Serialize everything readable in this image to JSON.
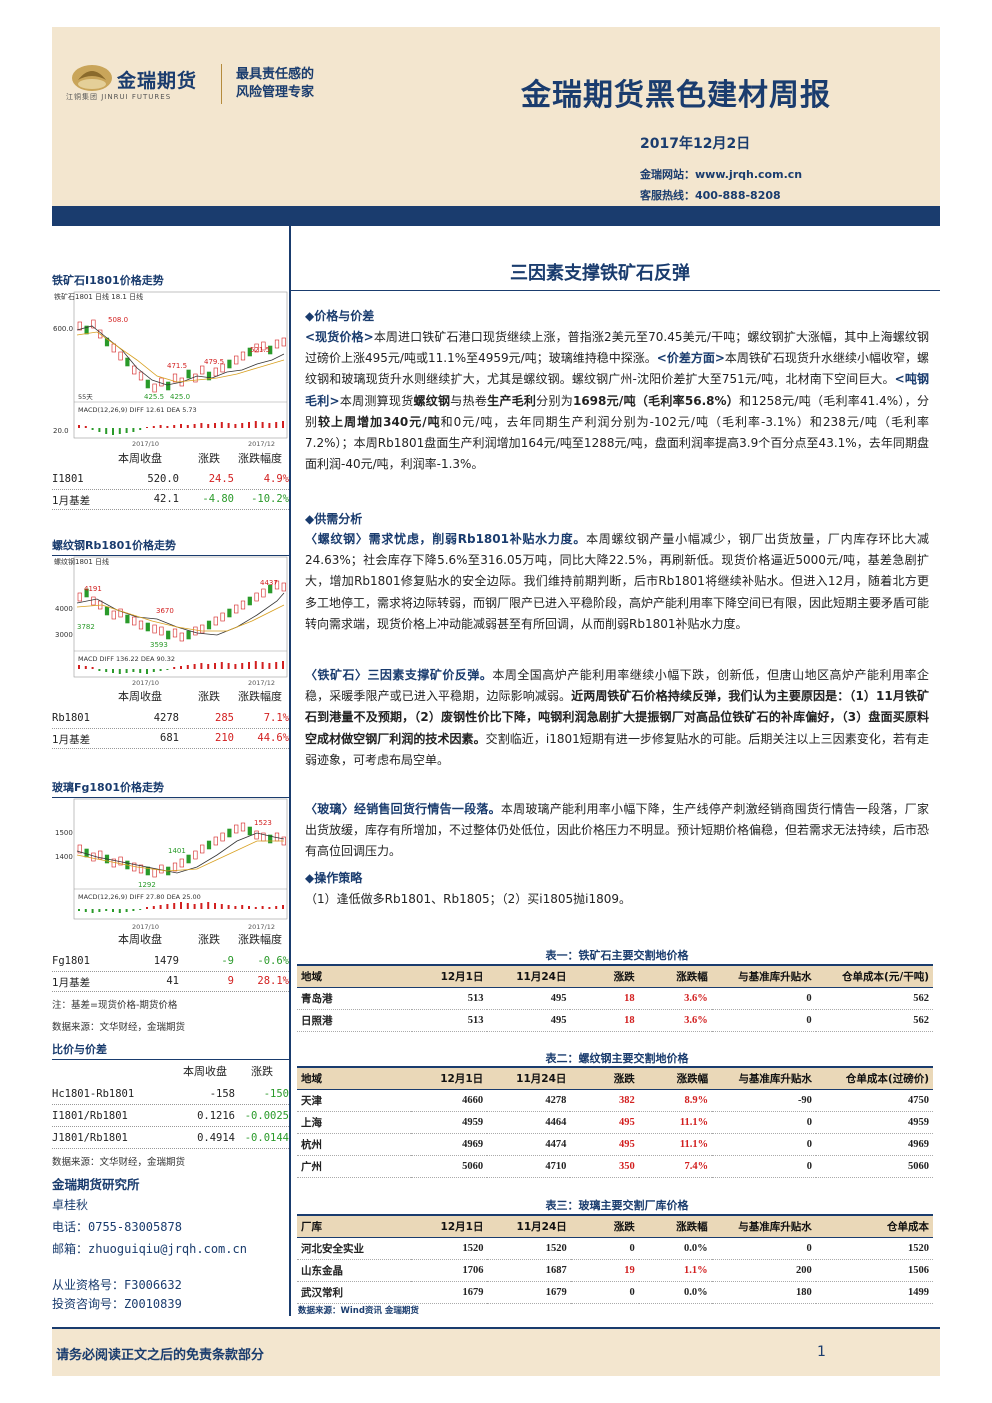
{
  "header": {
    "logo_cn": "金瑞期货",
    "logo_en": "江铜集团 JINRUI FUTURES",
    "slogan_line1": "最具责任感的",
    "slogan_line2": "风险管理专家",
    "title": "金瑞期货黑色建材周报",
    "date": "2017年12月2日",
    "site": "金瑞网站：www.jrqh.com.cn",
    "hotline": "客服热线：400-888-8208"
  },
  "main_title": "三因素支撑铁矿石反弹",
  "sidebar": {
    "iron": {
      "heading": "铁矿石I1801价格走势",
      "chart_label": "铁矿石1801 日线 18.1 日线",
      "y_top": "600.0",
      "y_bot": "20.0",
      "labels": [
        "508.0",
        "471.5",
        "479.5",
        "521.5",
        "425.5",
        "425.0"
      ],
      "macd": "MACD(12,26,9)  DIFF  12.61  DEA  5.73",
      "dates": [
        "2017/10",
        "2017/12"
      ],
      "misc": "55天",
      "cols": [
        "本周收盘",
        "涨跌",
        "涨跌幅度"
      ],
      "rows": [
        {
          "name": "I1801",
          "close": "520.0",
          "chg": "24.5",
          "pct": "4.9%"
        },
        {
          "name": "1月基差",
          "close": "42.1",
          "chg": "-4.80",
          "pct": "-10.2%"
        }
      ]
    },
    "rebar": {
      "heading": "螺纹钢Rb1801价格走势",
      "chart_label": "螺纹钢1801 日线",
      "y_top": "4000",
      "y_bot": "3000",
      "labels": [
        "4191",
        "3670",
        "3782",
        "3593",
        "4437"
      ],
      "macd": "MACD  DIFF  136.22  DEA  90.32",
      "dates": [
        "2017/10",
        "2017/12"
      ],
      "cols": [
        "本周收盘",
        "涨跌",
        "涨跌幅度"
      ],
      "rows": [
        {
          "name": "Rb1801",
          "close": "4278",
          "chg": "285",
          "pct": "7.1%"
        },
        {
          "name": "1月基差",
          "close": "681",
          "chg": "210",
          "pct": "44.6%"
        }
      ]
    },
    "glass": {
      "heading": "玻璃Fg1801价格走势",
      "chart_label": "",
      "y_top": "1500",
      "y_bot": "1400",
      "labels": [
        "1523",
        "1401",
        "1292"
      ],
      "macd": "MACD(12,26,9)  DIFF  27.80  DEA  25.00",
      "dates": [
        "2017/10",
        "2017/12"
      ],
      "cols": [
        "本周收盘",
        "涨跌",
        "涨跌幅度"
      ],
      "rows": [
        {
          "name": "Fg1801",
          "close": "1479",
          "chg": "-9",
          "pct": "-0.6%"
        },
        {
          "name": "1月基差",
          "close": "41",
          "chg": "9",
          "pct": "28.1%"
        }
      ]
    },
    "note1": "注：基差=现货价格-期货价格",
    "note2": "数据来源：文华财经，金瑞期货",
    "ratio": {
      "heading": "比价与价差",
      "cols": [
        "本周收盘",
        "涨跌"
      ],
      "rows": [
        {
          "name": "Hc1801-Rb1801",
          "close": "-158",
          "chg": "-150"
        },
        {
          "name": "I1801/Rb1801",
          "close": "0.1216",
          "chg": "-0.0025"
        },
        {
          "name": "J1801/Rb1801",
          "close": "0.4914",
          "chg": "-0.0144"
        }
      ],
      "source": "数据来源：文华财经，金瑞期货"
    },
    "contact": {
      "org": "金瑞期货研究所",
      "name": "卓桂秋",
      "phone": "电话：0755-83005878",
      "email": "邮箱：zhuoguiqiu@jrqh.com.cn",
      "cert1": "从业资格号：F3006632",
      "cert2": "投资咨询号：Z0010839"
    }
  },
  "body": {
    "s1": "◆价格与价差",
    "p1": [
      {
        "t": "<现货价格>",
        "k": true
      },
      {
        "t": "本周进口铁矿石港口现货继续上涨，普指涨2美元至70.45美元/干吨；螺纹钢扩大涨幅，其中上海螺纹钢过磅价上涨495元/吨或11.1%至4959元/吨；玻璃维持稳中探涨。"
      },
      {
        "t": "<价差方面>",
        "k": true
      },
      {
        "t": "本周铁矿石现货升水继续小幅收窄，螺纹钢和玻璃现货升水则继续扩大，尤其是螺纹钢。螺纹钢广州-沈阳价差扩大至751元/吨，北材南下空间巨大。"
      },
      {
        "t": "<吨钢毛利>",
        "k": true
      },
      {
        "t": "本周测算现货"
      },
      {
        "t": "螺纹钢",
        "b": true
      },
      {
        "t": "与热卷"
      },
      {
        "t": "生产毛利",
        "b": true
      },
      {
        "t": "分别为"
      },
      {
        "t": "1698元/吨（毛利率56.8%）",
        "b": true
      },
      {
        "t": "和1258元/吨（毛利率41.4%），分别"
      },
      {
        "t": "较上周增加340元/吨",
        "b": true
      },
      {
        "t": "和0元/吨，去年同期生产利润分别为-102元/吨（毛利率-3.1%）和238元/吨（毛利率7.2%）；本周Rb1801盘面生产利润增加164元/吨至1288元/吨，盘面利润率提高3.9个百分点至43.1%，去年同期盘面利润-40元/吨，利润率-1.3%。"
      }
    ],
    "s2": "◆供需分析",
    "p2": [
      {
        "t": "〈螺纹钢〉需求忧虑，削弱Rb1801补贴水力度。",
        "k": true
      },
      {
        "t": "本周螺纹钢产量小幅减少，钢厂出货放量，厂内库存环比大减24.63%；社会库存下降5.6%至316.05万吨，同比大降22.5%，再刷新低。现货价格逼近5000元/吨，基差急剧扩大，增加Rb1801修复贴水的安全边际。我们维持前期判断，后市Rb1801将继续补贴水。但进入12月，随着北方更多工地停工，需求将边际转弱，而钢厂限产已进入平稳阶段，高炉产能利用率下降空间已有限，因此短期主要矛盾可能转向需求端，现货价格上冲动能减弱甚至有所回调，从而削弱Rb1801补贴水力度。"
      }
    ],
    "p3": [
      {
        "t": "〈铁矿石〉三因素支撑矿价反弹。",
        "k": true
      },
      {
        "t": "本周全国高炉产能利用率继续小幅下跌，创新低，但唐山地区高炉产能利用率企稳，采暖季限产或已进入平稳期，边际影响减弱。"
      },
      {
        "t": "近两周铁矿石价格持续反弹，我们认为主要原因是：（1）11月铁矿石到港量不及预期，（2）废钢性价比下降，吨钢利润急剧扩大提振钢厂对高品位铁矿石的补库偏好，（3）盘面买原料空成材做空钢厂利润的技术因素。",
        "b": true
      },
      {
        "t": "交割临近，i1801短期有进一步修复贴水的可能。后期关注以上三因素变化，若有走弱迹象，可考虑布局空单。"
      }
    ],
    "p4": [
      {
        "t": "〈玻璃〉经销售回货行情告一段落。",
        "k": true
      },
      {
        "t": "本周玻璃产能利用率小幅下降，生产线停产刺激经销商囤货行情告一段落，厂家出货放缓，库存有所增加，不过整体仍处低位，因此价格压力不明显。预计短期价格偏稳，但若需求无法持续，后市恐有高位回调压力。"
      }
    ],
    "s3": "◆操作策略",
    "p5": "（1）逢低做多Rb1801、Rb1805；（2）买i1805抛i1809。"
  },
  "tables": [
    {
      "caption": "表一：铁矿石主要交割地价格",
      "cols": [
        "地域",
        "12月1日",
        "11月24日",
        "涨跌",
        "涨跌幅",
        "与基准库升贴水",
        "仓单成本(元/干吨)"
      ],
      "rows": [
        [
          "青岛港",
          "513",
          "495",
          "18",
          "3.6%",
          "0",
          "562"
        ],
        [
          "日照港",
          "513",
          "495",
          "18",
          "3.6%",
          "0",
          "562"
        ]
      ]
    },
    {
      "caption": "表二：螺纹钢主要交割地价格",
      "cols": [
        "地域",
        "12月1日",
        "11月24日",
        "涨跌",
        "涨跌幅",
        "与基准库升贴水",
        "仓单成本(过磅价)"
      ],
      "rows": [
        [
          "天津",
          "4660",
          "4278",
          "382",
          "8.9%",
          "-90",
          "4750"
        ],
        [
          "上海",
          "4959",
          "4464",
          "495",
          "11.1%",
          "0",
          "4959"
        ],
        [
          "杭州",
          "4969",
          "4474",
          "495",
          "11.1%",
          "0",
          "4969"
        ],
        [
          "广州",
          "5060",
          "4710",
          "350",
          "7.4%",
          "0",
          "5060"
        ]
      ]
    },
    {
      "caption": "表三：玻璃主要交割厂库价格",
      "cols": [
        "厂库",
        "12月1日",
        "11月24日",
        "涨跌",
        "涨跌幅",
        "与基准库升贴水",
        "仓单成本"
      ],
      "rows": [
        [
          "河北安全实业",
          "1520",
          "1520",
          "0",
          "0.0%",
          "0",
          "1520"
        ],
        [
          "山东金晶",
          "1706",
          "1687",
          "19",
          "1.1%",
          "200",
          "1506"
        ],
        [
          "武汉常利",
          "1679",
          "1679",
          "0",
          "0.0%",
          "180",
          "1499"
        ]
      ]
    }
  ],
  "table_source": "数据来源：Wind资讯  金瑞期货",
  "footer": {
    "text": "请务必阅读正文之后的免责条款部分",
    "page": "1"
  }
}
